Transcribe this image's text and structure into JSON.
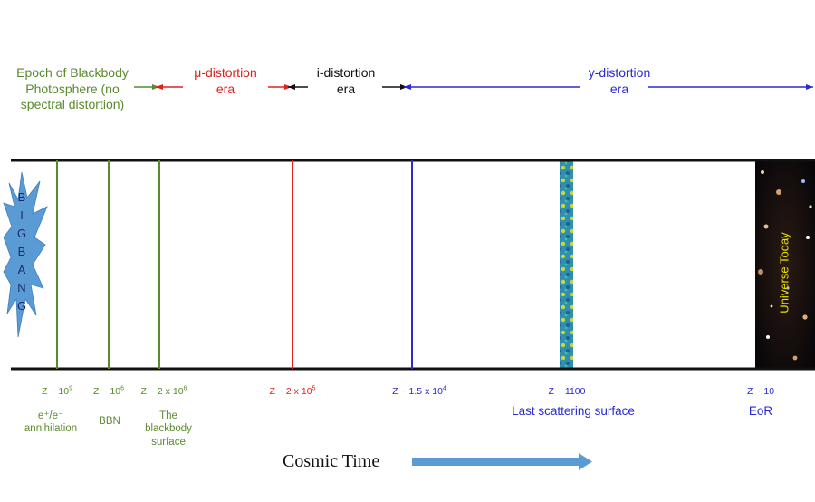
{
  "eras": {
    "blackbody": "Epoch of Blackbody Photosphere (no spectral distortion)",
    "blackbody_lines": [
      "Epoch of Blackbody",
      "Photosphere (no",
      "spectral distortion)"
    ],
    "mu": [
      "μ-distortion",
      "era"
    ],
    "i": [
      "i-distortion",
      "era"
    ],
    "y": [
      "y-distortion",
      "era"
    ]
  },
  "big_bang": {
    "letters": [
      "B",
      "I",
      "G",
      "B",
      "A",
      "N",
      "G"
    ]
  },
  "markers": [
    {
      "z_base": "Z ~ 10",
      "z_exp": "9",
      "event": [
        "e⁺/e⁻",
        "annihilation"
      ],
      "color": "#5a8a2e"
    },
    {
      "z_base": "Z ~ 10",
      "z_exp": "6",
      "event": [
        "BBN"
      ],
      "color": "#5a8a2e"
    },
    {
      "z_base": "Z ~ 2 x 10",
      "z_exp": "6",
      "event": [
        "The",
        "blackbody",
        "surface"
      ],
      "color": "#5a8a2e"
    },
    {
      "z_base": "Z ~ 2 x 10",
      "z_exp": "5",
      "event": [],
      "color": "#e0201b"
    },
    {
      "z_base": "Z ~ 1.5 x 10",
      "z_exp": "4",
      "event": [],
      "color": "#2a2ad0"
    },
    {
      "z_base": "Z ~ 1100",
      "z_exp": "",
      "event": [
        "Last scattering surface"
      ],
      "color": "#2a2ad0"
    },
    {
      "z_base": "Z ~ 10",
      "z_exp": "",
      "event": [
        "EoR"
      ],
      "color": "#2a2ad0"
    }
  ],
  "universe_today": "Universe Today",
  "cosmic_time": "Cosmic Time",
  "colors": {
    "green": "#5a8a2e",
    "red": "#e0201b",
    "blue": "#2a2ad0",
    "arrow": "#5b9bd5",
    "starburst": "#5b9bd5"
  }
}
